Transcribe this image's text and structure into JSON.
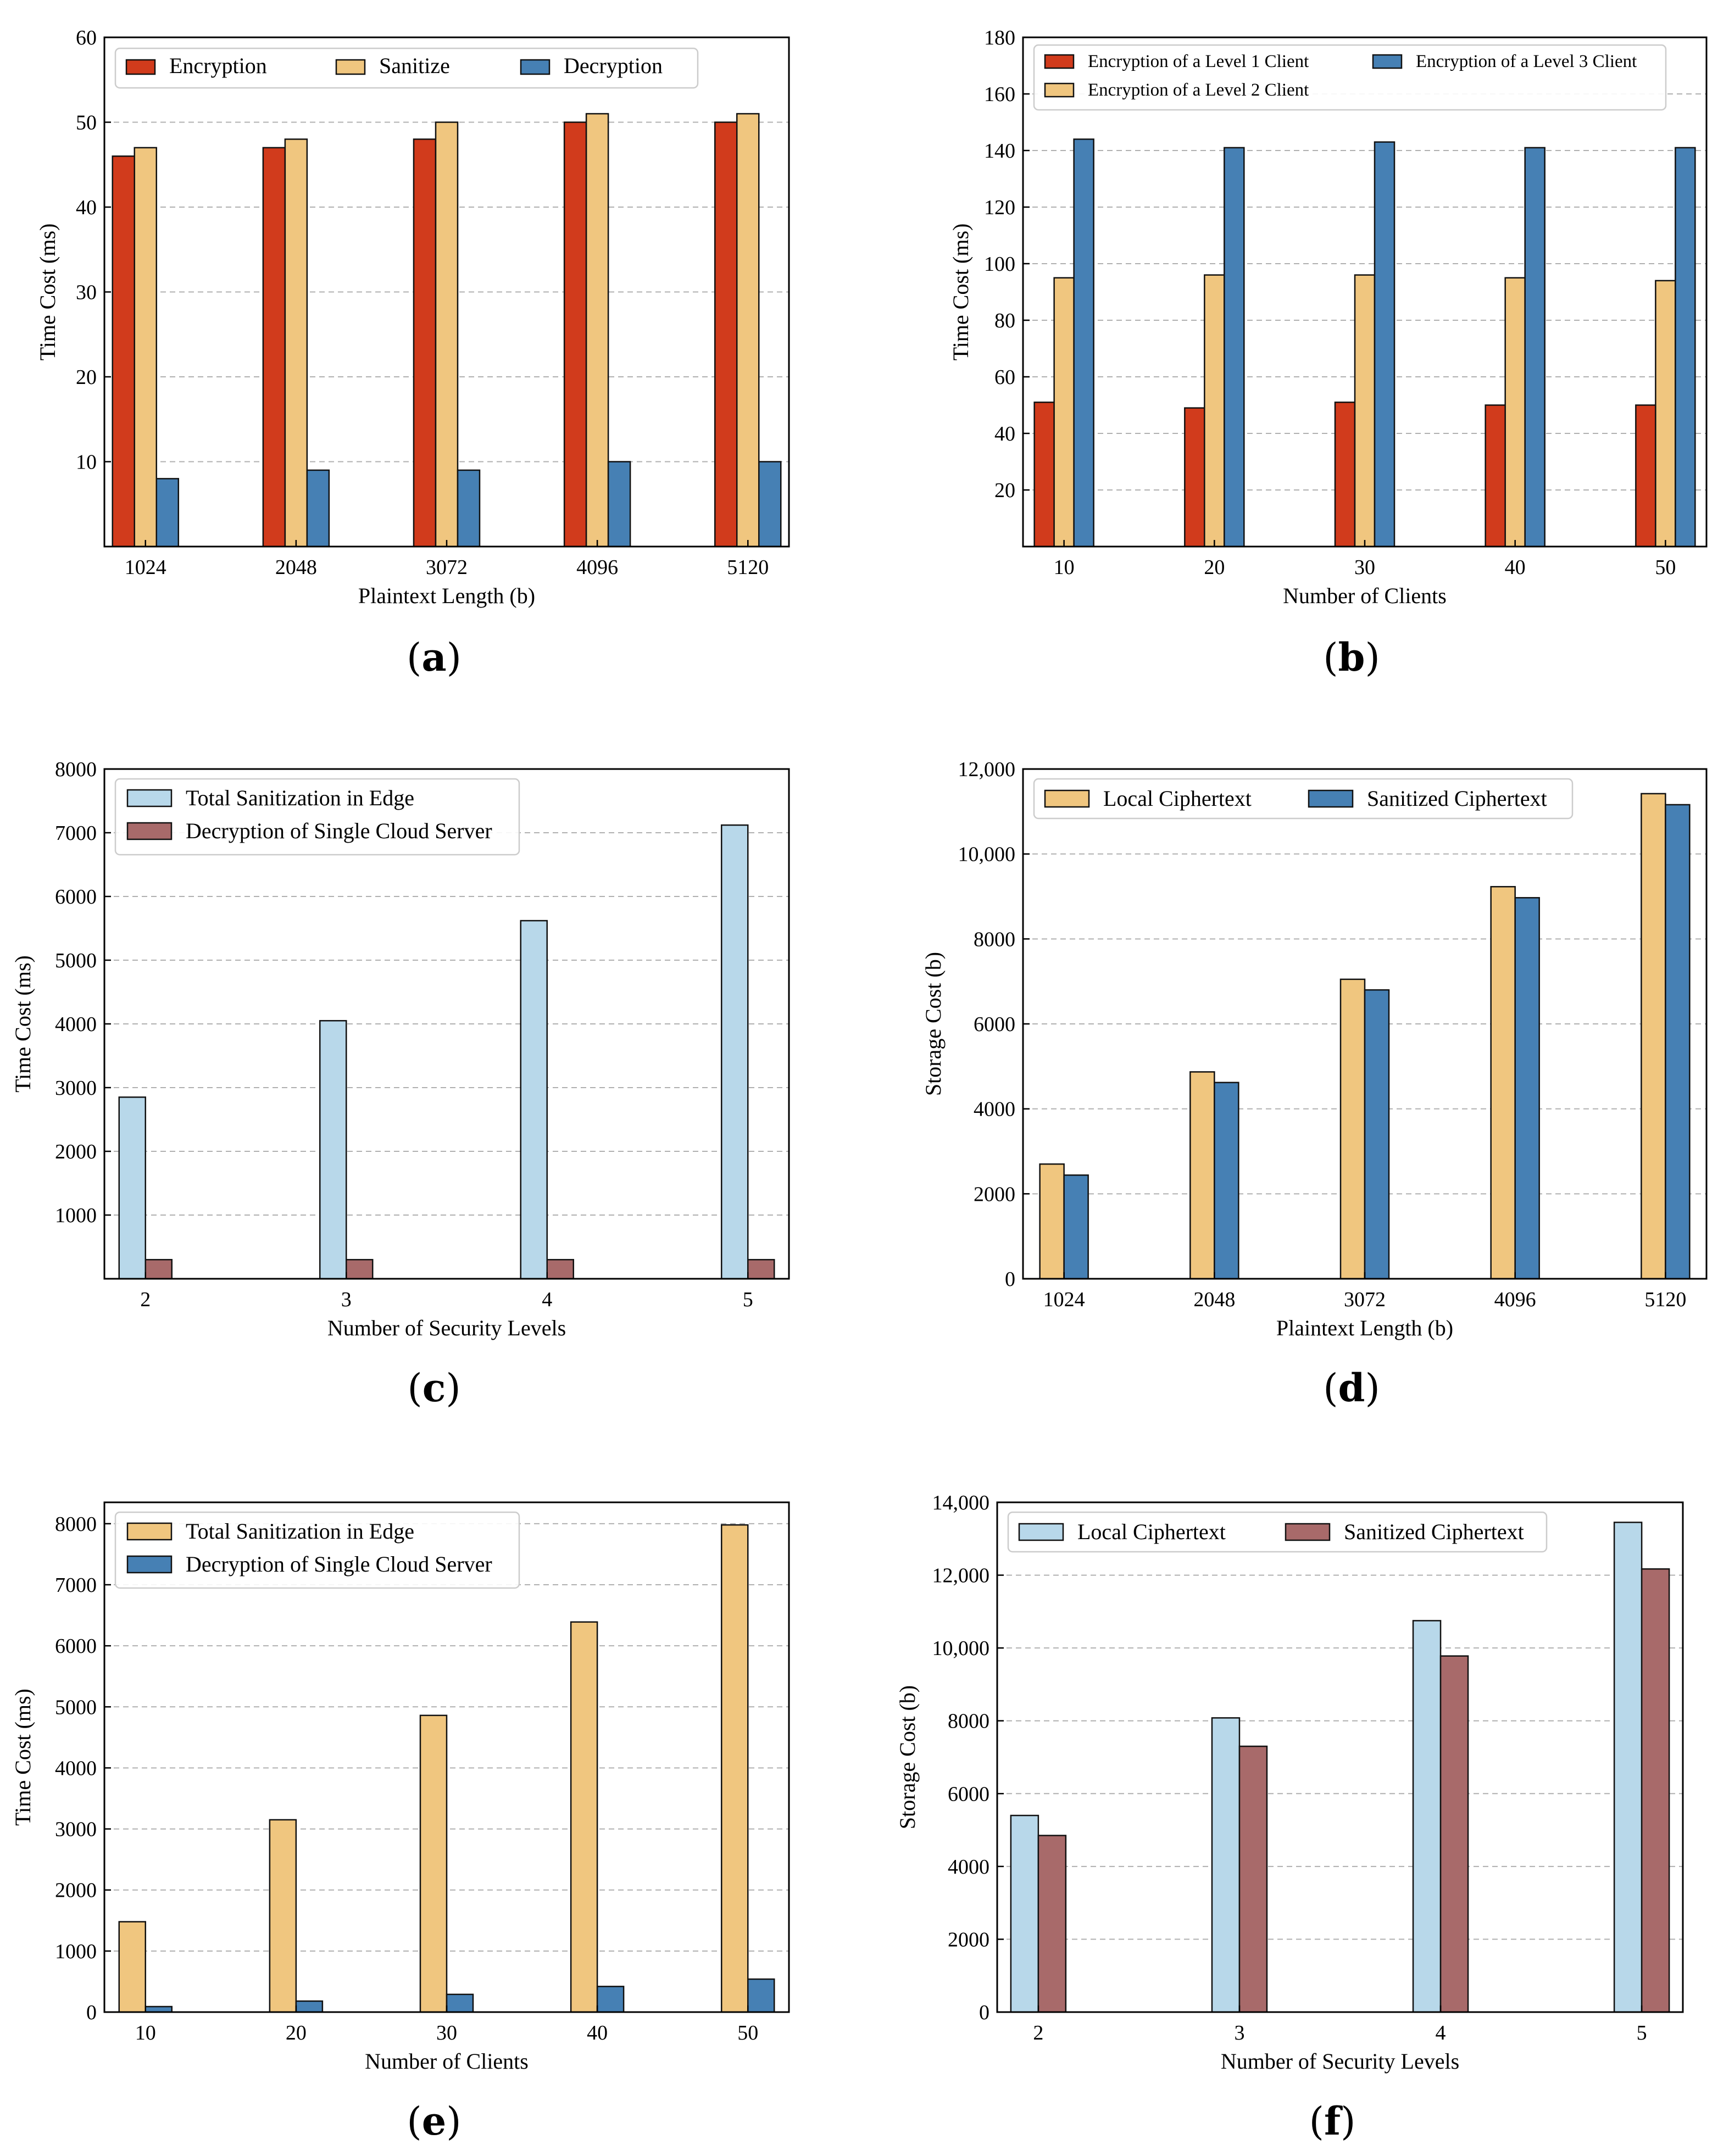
{
  "chart_data": [
    {
      "id": "a",
      "type": "bar",
      "panel_label": "a",
      "xlabel": "Plaintext Length (b)",
      "ylabel": "Time Cost (ms)",
      "categories": [
        "1024",
        "2048",
        "3072",
        "4096",
        "5120"
      ],
      "ylim": [
        0,
        60
      ],
      "yticks": [
        10,
        20,
        30,
        40,
        50,
        60
      ],
      "ytick_labels": [
        "10",
        "20",
        "30",
        "40",
        "50",
        "60"
      ],
      "grid": true,
      "legend_position": "top",
      "legend_layout": "row",
      "series": [
        {
          "name": "Encryption",
          "color": "#d13b1c",
          "values": [
            46,
            47,
            48,
            50,
            50
          ]
        },
        {
          "name": "Sanitize",
          "color": "#f0c67f",
          "values": [
            47,
            48,
            50,
            51,
            51
          ]
        },
        {
          "name": "Decryption",
          "color": "#4680b4",
          "values": [
            8,
            9,
            9,
            10,
            10
          ]
        }
      ]
    },
    {
      "id": "b",
      "type": "bar",
      "panel_label": "b",
      "xlabel": "Number of Clients",
      "ylabel": "Time Cost (ms)",
      "categories": [
        "10",
        "20",
        "30",
        "40",
        "50"
      ],
      "ylim": [
        0,
        180
      ],
      "yticks": [
        20,
        40,
        60,
        80,
        100,
        120,
        140,
        160,
        180
      ],
      "ytick_labels": [
        "20",
        "40",
        "60",
        "80",
        "100",
        "120",
        "140",
        "160",
        "180"
      ],
      "grid": true,
      "legend_position": "top",
      "legend_layout": "grid",
      "series": [
        {
          "name": "Encryption of a Level 1 Client",
          "color": "#d13b1c",
          "values": [
            51,
            49,
            51,
            50,
            50
          ]
        },
        {
          "name": "Encryption of a Level 2 Client",
          "color": "#f0c67f",
          "values": [
            95,
            96,
            96,
            95,
            94
          ]
        },
        {
          "name": "Encryption of a Level 3 Client",
          "color": "#4680b4",
          "values": [
            144,
            141,
            143,
            141,
            141
          ]
        }
      ]
    },
    {
      "id": "c",
      "type": "bar",
      "panel_label": "c",
      "xlabel": "Number of Security Levels",
      "ylabel": "Time Cost (ms)",
      "categories": [
        "2",
        "3",
        "4",
        "5"
      ],
      "ylim": [
        0,
        8000
      ],
      "yticks": [
        1000,
        2000,
        3000,
        4000,
        5000,
        6000,
        7000,
        8000
      ],
      "ytick_labels": [
        "1000",
        "2000",
        "3000",
        "4000",
        "5000",
        "6000",
        "7000",
        "8000"
      ],
      "grid": true,
      "legend_position": "top-left",
      "legend_layout": "column",
      "series": [
        {
          "name": "Total Sanitization in Edge",
          "color": "#b8d8ea",
          "values": [
            2850,
            4050,
            5620,
            7120
          ]
        },
        {
          "name": "Decryption of Single Cloud Server",
          "color": "#a86a6a",
          "values": [
            300,
            300,
            300,
            300
          ]
        }
      ]
    },
    {
      "id": "d",
      "type": "bar",
      "panel_label": "d",
      "xlabel": "Plaintext Length (b)",
      "ylabel": "Storage Cost (b)",
      "categories": [
        "1024",
        "2048",
        "3072",
        "4096",
        "5120"
      ],
      "ylim": [
        0,
        12000
      ],
      "yticks": [
        0,
        2000,
        4000,
        6000,
        8000,
        10000,
        12000
      ],
      "ytick_labels": [
        "0",
        "2000",
        "4000",
        "6000",
        "8000",
        "10,000",
        "12,000"
      ],
      "grid": true,
      "legend_position": "top-left",
      "legend_layout": "row",
      "series": [
        {
          "name": "Local Ciphertext",
          "color": "#f0c67f",
          "values": [
            2700,
            4870,
            7050,
            9230,
            11420
          ]
        },
        {
          "name": "Sanitized Ciphertext",
          "color": "#4680b4",
          "values": [
            2440,
            4620,
            6800,
            8970,
            11160
          ]
        }
      ]
    },
    {
      "id": "e",
      "type": "bar",
      "panel_label": "e",
      "xlabel": "Number of Clients",
      "ylabel": "Time Cost (ms)",
      "categories": [
        "10",
        "20",
        "30",
        "40",
        "50"
      ],
      "ylim": [
        0,
        8350
      ],
      "yticks": [
        0,
        1000,
        2000,
        3000,
        4000,
        5000,
        6000,
        7000,
        8000
      ],
      "ytick_labels": [
        "0",
        "1000",
        "2000",
        "3000",
        "4000",
        "5000",
        "6000",
        "7000",
        "8000"
      ],
      "grid": true,
      "legend_position": "top-left",
      "legend_layout": "column",
      "series": [
        {
          "name": "Total Sanitization in Edge",
          "color": "#f0c67f",
          "values": [
            1480,
            3150,
            4860,
            6390,
            7980
          ]
        },
        {
          "name": "Decryption of Single Cloud Server",
          "color": "#4680b4",
          "values": [
            90,
            180,
            290,
            420,
            540
          ]
        }
      ]
    },
    {
      "id": "f",
      "type": "bar",
      "panel_label": "f",
      "xlabel": "Number of Security Levels",
      "ylabel": "Storage Cost (b)",
      "categories": [
        "2",
        "3",
        "4",
        "5"
      ],
      "ylim": [
        0,
        14000
      ],
      "yticks": [
        0,
        2000,
        4000,
        6000,
        8000,
        10000,
        12000,
        14000
      ],
      "ytick_labels": [
        "0",
        "2000",
        "4000",
        "6000",
        "8000",
        "10,000",
        "12,000",
        "14,000"
      ],
      "grid": true,
      "legend_position": "top-left",
      "legend_layout": "row",
      "series": [
        {
          "name": "Local Ciphertext",
          "color": "#b8d8ea",
          "values": [
            5400,
            8080,
            10750,
            13450
          ]
        },
        {
          "name": "Sanitized Ciphertext",
          "color": "#a86a6a",
          "values": [
            4850,
            7300,
            9780,
            12170
          ]
        }
      ]
    }
  ]
}
